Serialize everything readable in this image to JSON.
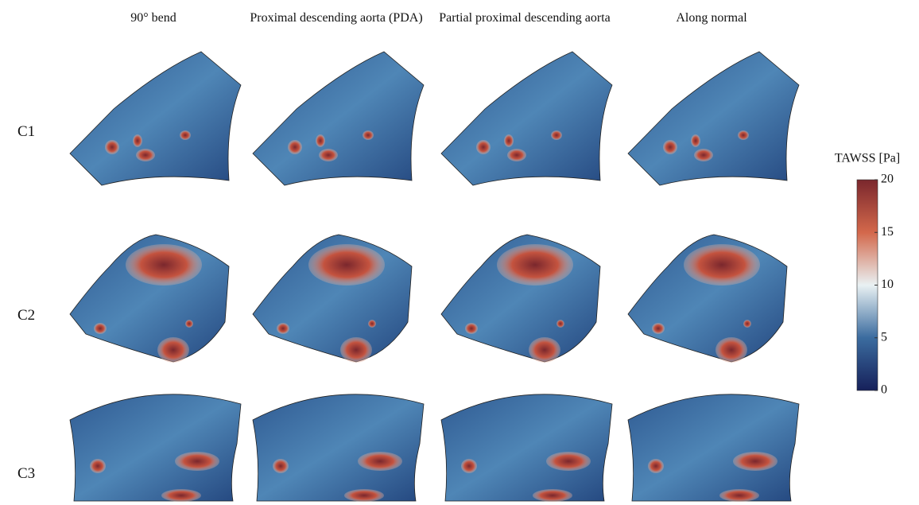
{
  "columns": [
    "90° bend",
    "Proximal descending aorta (PDA)",
    "Partial proximal descending aorta",
    "Along normal"
  ],
  "rows": [
    "C1",
    "C2",
    "C3"
  ],
  "colorbar": {
    "title": "TAWSS [Pa]",
    "lim": [
      0,
      20
    ],
    "ticks": [
      0,
      5,
      10,
      15,
      20
    ],
    "colors": [
      "#16205a",
      "#3b6c9f",
      "#e9f1f3",
      "#d3684b",
      "#7a272d"
    ]
  }
}
